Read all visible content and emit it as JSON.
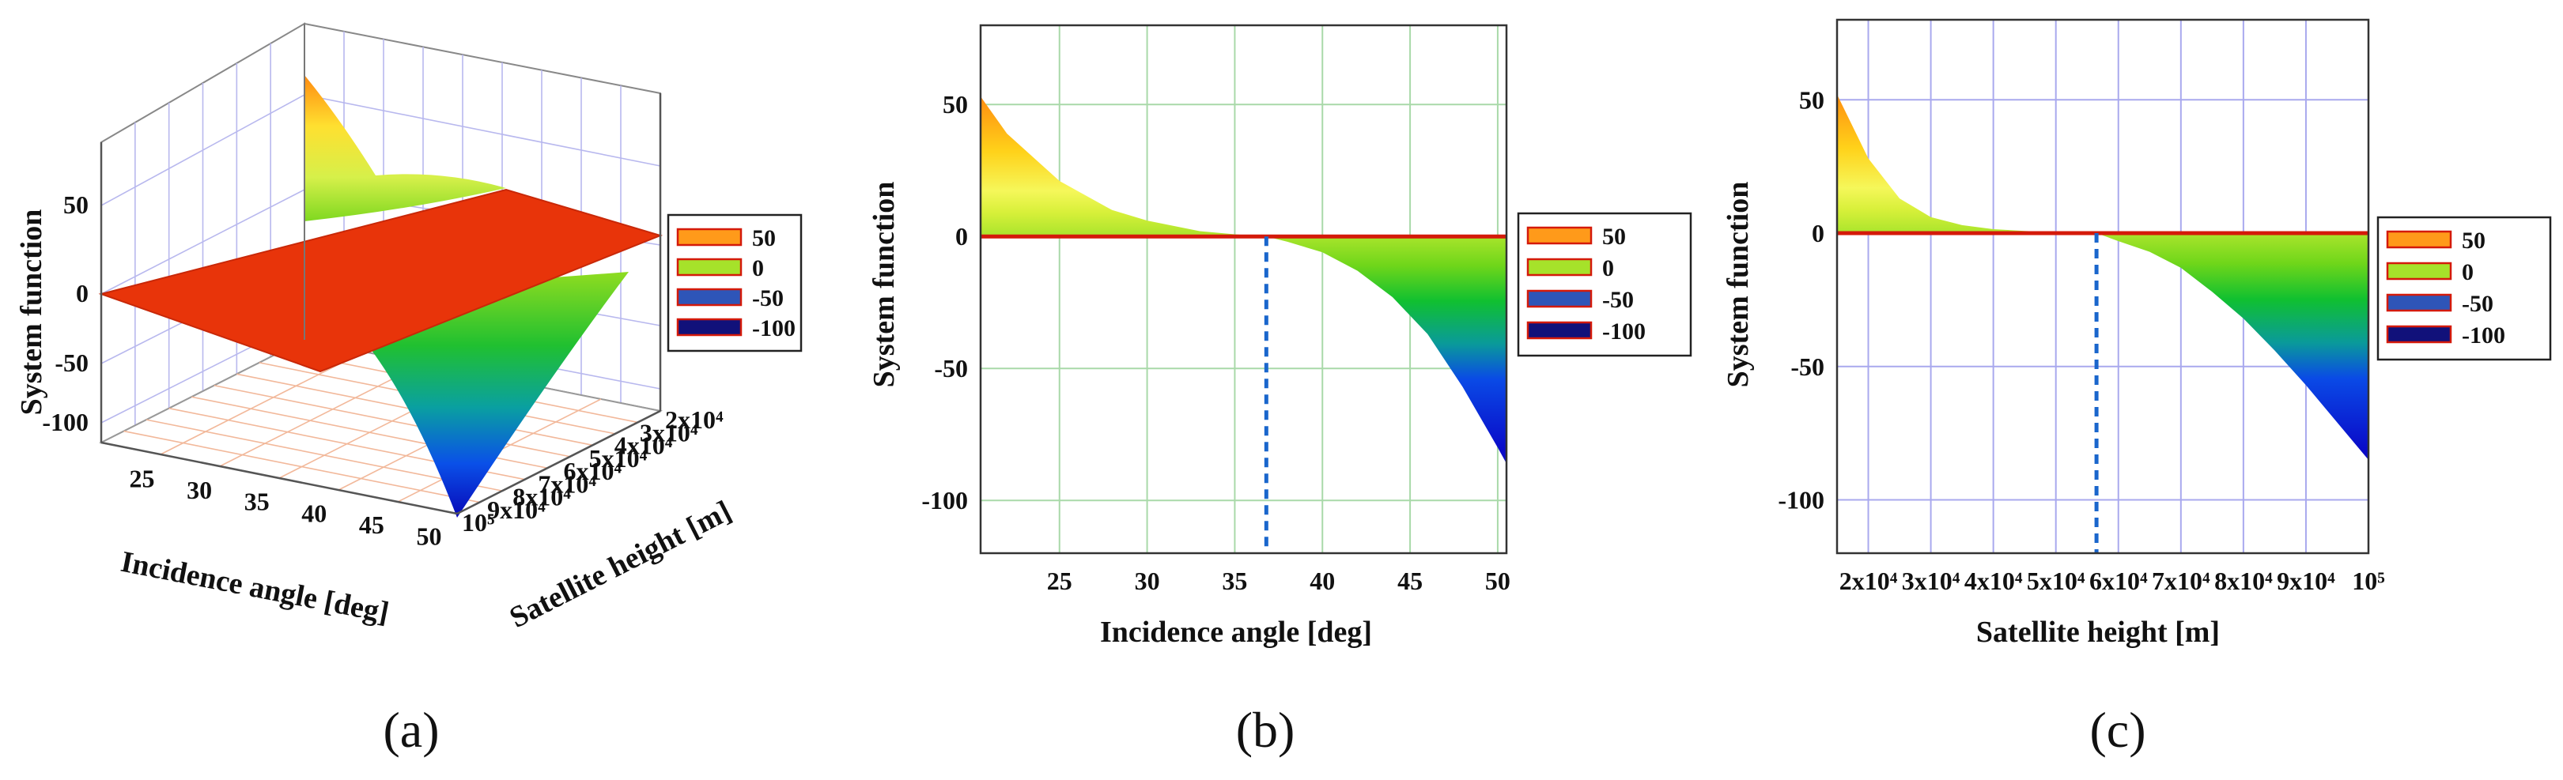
{
  "chart_data": [
    {
      "panel": "(a)",
      "type": "surface3d",
      "xlabel": "Incidence angle [deg]",
      "ylabel": "Satellite height [m]",
      "zlabel": "System function",
      "x_ticks": [
        "25",
        "30",
        "35",
        "40",
        "45",
        "50"
      ],
      "y_ticks": [
        "2x10⁴",
        "3x10⁴",
        "4x10⁴",
        "5x10⁴",
        "6x10⁴",
        "7x10⁴",
        "8x10⁴",
        "9x10⁴",
        "10⁵"
      ],
      "z_ticks": [
        "50",
        "0",
        "-50",
        "-100"
      ],
      "zlim": [
        -120,
        80
      ],
      "legend": [
        {
          "label": "50",
          "color": "#ff9a1a"
        },
        {
          "label": "0",
          "color": "#a6e22a"
        },
        {
          "label": "-50",
          "color": "#2e55b8"
        },
        {
          "label": "-100",
          "color": "#11117a"
        }
      ],
      "plane_color": "#e8340a",
      "grid": true
    },
    {
      "panel": "(b)",
      "type": "area",
      "xlabel": "Incidence angle [deg]",
      "ylabel": "System function",
      "x_ticks": [
        "25",
        "30",
        "35",
        "40",
        "45",
        "50"
      ],
      "y_ticks": [
        "50",
        "0",
        "-50",
        "-100"
      ],
      "xlim": [
        20.5,
        50.5
      ],
      "ylim": [
        -120,
        80
      ],
      "series": [
        {
          "x": [
            20.5,
            22,
            25,
            28,
            30,
            33,
            35,
            36.8,
            38,
            40,
            42,
            44,
            46,
            48,
            50,
            50.5
          ],
          "values": [
            53,
            39,
            21,
            10,
            6,
            2,
            0.8,
            0,
            -2,
            -6,
            -13,
            -23,
            -37,
            -57,
            -80,
            -86
          ]
        }
      ],
      "crossing_x": 36.8,
      "legend": [
        {
          "label": "50",
          "color": "#ff9a1a"
        },
        {
          "label": "0",
          "color": "#a6e22a"
        },
        {
          "label": "-50",
          "color": "#2e55b8"
        },
        {
          "label": "-100",
          "color": "#11117a"
        }
      ],
      "grid": true
    },
    {
      "panel": "(c)",
      "type": "area",
      "xlabel": "Satellite height [m]",
      "ylabel": "System function",
      "x_ticks": [
        "2x10⁴",
        "3x10⁴",
        "4x10⁴",
        "5x10⁴",
        "6x10⁴",
        "7x10⁴",
        "8x10⁴",
        "9x10⁴",
        "10⁵"
      ],
      "y_ticks": [
        "50",
        "0",
        "-50",
        "-100"
      ],
      "xlim": [
        15000,
        100000
      ],
      "ylim": [
        -120,
        80
      ],
      "series": [
        {
          "x": [
            15000,
            20000,
            25000,
            30000,
            35000,
            40000,
            45000,
            50000,
            56500,
            60000,
            65000,
            70000,
            75000,
            80000,
            85000,
            90000,
            95000,
            100000
          ],
          "values": [
            52,
            28,
            13,
            6,
            3,
            1.5,
            0.8,
            0.3,
            0,
            -3,
            -7,
            -13,
            -22,
            -32,
            -44,
            -57,
            -71,
            -85
          ]
        }
      ],
      "crossing_x": 56500,
      "legend": [
        {
          "label": "50",
          "color": "#ff9a1a"
        },
        {
          "label": "0",
          "color": "#a6e22a"
        },
        {
          "label": "-50",
          "color": "#2e55b8"
        },
        {
          "label": "-100",
          "color": "#11117a"
        }
      ],
      "grid": true
    }
  ]
}
